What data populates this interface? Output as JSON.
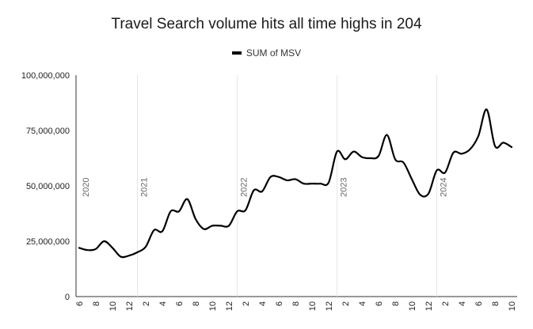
{
  "chart_data": {
    "type": "line",
    "title": "Travel Search volume hits all time highs in 204",
    "xlabel": "",
    "ylabel": "",
    "ylim": [
      0,
      100000000
    ],
    "y_ticks": [
      {
        "value": 0,
        "label": "0"
      },
      {
        "value": 25000000,
        "label": "25,000,000"
      },
      {
        "value": 50000000,
        "label": "50,000,000"
      },
      {
        "value": 75000000,
        "label": "75,000,000"
      },
      {
        "value": 100000000,
        "label": "100,000,000"
      }
    ],
    "x_tick_labels": [
      "6",
      "8",
      "10",
      "12",
      "2",
      "4",
      "6",
      "8",
      "10",
      "12",
      "2",
      "4",
      "6",
      "8",
      "10",
      "12",
      "2",
      "4",
      "6",
      "8",
      "10",
      "12",
      "2",
      "4",
      "6",
      "8",
      "10"
    ],
    "year_markers": [
      {
        "year": "2020",
        "index": 0
      },
      {
        "year": "2021",
        "index": 7
      },
      {
        "year": "2022",
        "index": 19
      },
      {
        "year": "2023",
        "index": 31
      },
      {
        "year": "2024",
        "index": 43
      }
    ],
    "grid": "vertical year lines",
    "legend_position": "top",
    "series": [
      {
        "name": "SUM of MSV",
        "color": "#000000",
        "values": [
          22000000,
          21000000,
          21500000,
          25000000,
          22000000,
          18000000,
          18500000,
          20000000,
          22500000,
          30000000,
          29500000,
          38500000,
          38500000,
          44000000,
          35000000,
          30500000,
          32000000,
          32000000,
          32000000,
          38500000,
          39000000,
          48000000,
          47500000,
          54000000,
          54000000,
          52500000,
          53000000,
          51000000,
          51000000,
          51000000,
          51500000,
          65500000,
          62000000,
          65500000,
          63000000,
          62500000,
          63500000,
          73000000,
          62000000,
          60500000,
          53000000,
          46000000,
          46500000,
          57000000,
          56000000,
          65000000,
          64500000,
          66500000,
          72500000,
          84500000,
          68000000,
          69500000,
          67500000
        ]
      }
    ]
  }
}
